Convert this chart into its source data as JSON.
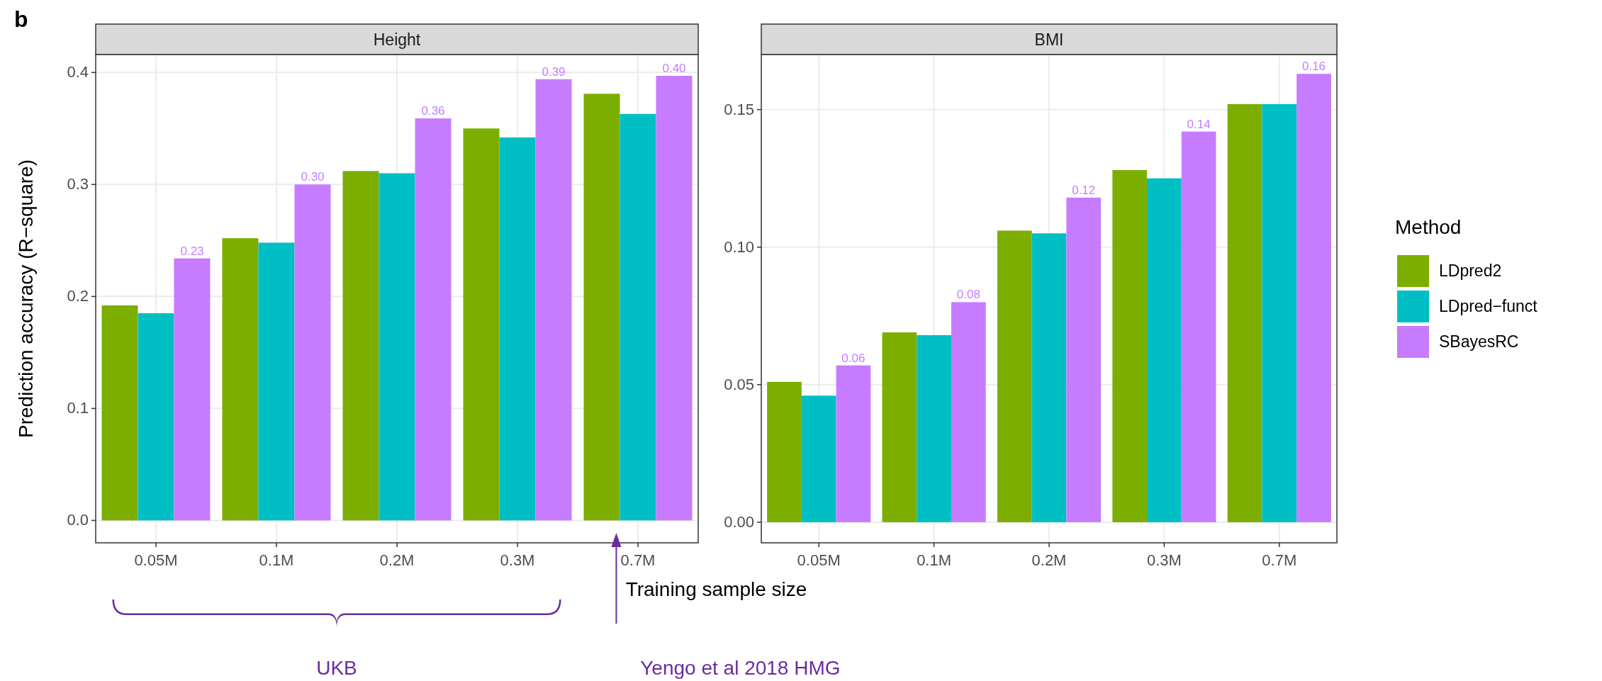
{
  "chart_data": [
    {
      "type": "bar",
      "title": "Height",
      "xlabel": "Training sample size",
      "ylabel": "Prediction accuracy (R−square)",
      "categories": [
        "0.05M",
        "0.1M",
        "0.2M",
        "0.3M",
        "0.7M"
      ],
      "series": [
        {
          "color": "#7cae00",
          "values": [
            0.192,
            0.252,
            0.312,
            0.35,
            0.381
          ]
        },
        {
          "color": "#00bfc4",
          "values": [
            0.185,
            0.248,
            0.31,
            0.342,
            0.363
          ]
        },
        {
          "color": "#c77cff",
          "values": [
            0.234,
            0.3,
            0.359,
            0.394,
            0.397
          ],
          "value_labels": [
            "0.23",
            "0.30",
            "0.36",
            "0.39",
            "0.40"
          ]
        }
      ],
      "ylim": [
        -0.02,
        0.416
      ],
      "yticks": [
        {
          "value": 0,
          "label": "0.0"
        },
        {
          "value": 0.1,
          "label": "0.1"
        },
        {
          "value": 0.2,
          "label": "0.2"
        },
        {
          "value": 0.3,
          "label": "0.3"
        },
        {
          "value": 0.4,
          "label": "0.4"
        }
      ],
      "grid": true,
      "legend": false,
      "annotations": [
        "b",
        "UKB",
        "Yengo et al 2018 HMG"
      ]
    },
    {
      "type": "bar",
      "title": "BMI",
      "categories": [
        "0.05M",
        "0.1M",
        "0.2M",
        "0.3M",
        "0.7M"
      ],
      "series": [
        {
          "name": "LDpred2",
          "color": "#7cae00",
          "values": [
            0.051,
            0.069,
            0.106,
            0.128,
            0.152
          ]
        },
        {
          "name": "LDpred−funct",
          "color": "#00bfc4",
          "values": [
            0.046,
            0.068,
            0.105,
            0.125,
            0.152
          ]
        },
        {
          "name": "SBayesRC",
          "color": "#c77cff",
          "values": [
            0.057,
            0.08,
            0.118,
            0.142,
            0.163
          ],
          "value_labels": [
            "0.06",
            "0.08",
            "0.12",
            "0.14",
            "0.16"
          ]
        }
      ],
      "ylim": [
        -0.0075,
        0.17
      ],
      "yticks": [
        {
          "value": 0,
          "label": "0.00"
        },
        {
          "value": 0.05,
          "label": "0.05"
        },
        {
          "value": 0.1,
          "label": "0.10"
        },
        {
          "value": 0.15,
          "label": "0.15"
        }
      ],
      "grid": true,
      "legend": "right",
      "legend_title": "Method"
    }
  ]
}
